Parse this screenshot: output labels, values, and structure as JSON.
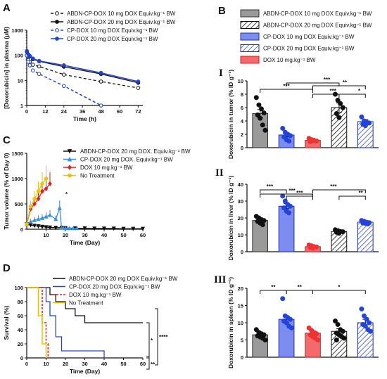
{
  "panels": {
    "A": "A",
    "B": "B",
    "C": "C",
    "D": "D",
    "I": "I",
    "II": "II",
    "III": "III"
  },
  "colors": {
    "black": "#111111",
    "blue": "#2244cc",
    "red": "#dd2222",
    "lightblue": "#3a8fe0",
    "yellow": "#f2c200",
    "gray": "#9a9a9a",
    "bluebar": "#7d8cf0",
    "redbar": "#f46a6a"
  },
  "chart_data": [
    {
      "id": "A",
      "type": "line",
      "xlabel": "Time (h)",
      "ylabel": "[Doxorubicin] in plasma (µM)",
      "xlim": [
        0,
        75
      ],
      "ylim": [
        1,
        1000
      ],
      "yscale": "log",
      "xticks": [
        "0",
        "12",
        "24",
        "36",
        "48",
        "60",
        "72"
      ],
      "yticks": [
        "1",
        "10",
        "100",
        "1000"
      ],
      "legend_position": "top-right",
      "series": [
        {
          "name": "ABDN-CP-DOX 10 mg DOX Equiv.kg⁻¹ BW",
          "style": "black-dashed-open",
          "x": [
            0.08,
            0.5,
            1,
            2,
            4,
            8,
            24,
            48,
            72
          ],
          "y": [
            100,
            80,
            65,
            55,
            42,
            36,
            17,
            9,
            5
          ]
        },
        {
          "name": "ABDN-CP-DOX 20 mg DOX Equiv.kg⁻¹ BW",
          "style": "black-solid-filled",
          "x": [
            0.08,
            0.5,
            1,
            2,
            4,
            8,
            24,
            48,
            72
          ],
          "y": [
            140,
            120,
            100,
            90,
            70,
            58,
            35,
            18,
            8
          ]
        },
        {
          "name": "CP-DOX 10 mg DOX Equiv.kg⁻¹ BW",
          "style": "blue-dashed-open",
          "x": [
            0.08,
            0.5,
            1,
            2,
            4,
            8,
            24,
            48
          ],
          "y": [
            100,
            70,
            55,
            40,
            25,
            18,
            6,
            1
          ]
        },
        {
          "name": "CP-DOX 20 mg DOX Equiv.kg⁻¹ BW",
          "style": "blue-solid-filled",
          "x": [
            0.08,
            0.5,
            1,
            2,
            4,
            8,
            24,
            48,
            72
          ],
          "y": [
            150,
            130,
            110,
            95,
            75,
            60,
            40,
            20,
            9
          ]
        }
      ]
    },
    {
      "id": "C",
      "type": "line",
      "xlabel": "Time (Day)",
      "ylabel": "Tumor volume (% of Day 0)",
      "xlim": [
        0,
        60
      ],
      "ylim": [
        0,
        1500
      ],
      "xticks": [
        "10",
        "20",
        "30",
        "40",
        "50",
        "60"
      ],
      "yticks": [
        "0",
        "500",
        "1000",
        "1500"
      ],
      "annotation": "*",
      "legend_position": "top-right",
      "series": [
        {
          "name": "ABDN-CP-DOX 20 mg DOX. Equiv.kg⁻¹ BW",
          "style": "black-down-triangle",
          "x": [
            0,
            2,
            4,
            6,
            8,
            10,
            12,
            15,
            18,
            20,
            25,
            30,
            35,
            40,
            45,
            50,
            55,
            60
          ],
          "y": [
            100,
            80,
            70,
            60,
            50,
            40,
            35,
            30,
            30,
            25,
            20,
            20,
            15,
            15,
            15,
            10,
            10,
            10
          ]
        },
        {
          "name": "CP-DOX 20 mg DOX. Equiv.kg⁻¹ BW",
          "style": "lightblue-up-triangle",
          "x": [
            0,
            2,
            4,
            6,
            8,
            10,
            12,
            15,
            17,
            18,
            20,
            22,
            24,
            26
          ],
          "y": [
            100,
            150,
            180,
            200,
            220,
            250,
            280,
            200,
            420,
            30,
            20,
            20,
            20,
            20
          ]
        },
        {
          "name": "DOX 10 mg.kg⁻¹ BW",
          "style": "red-diamond",
          "x": [
            0,
            2,
            4,
            6,
            8,
            10,
            12
          ],
          "y": [
            100,
            400,
            500,
            600,
            750,
            800,
            900
          ]
        },
        {
          "name": "No Treatment",
          "style": "yellow-circle",
          "x": [
            0,
            2,
            4,
            6,
            8,
            10
          ],
          "y": [
            100,
            450,
            600,
            750,
            900,
            1000
          ]
        }
      ]
    },
    {
      "id": "D",
      "type": "line",
      "xlabel": "Time (Day)",
      "ylabel": "Survival (%)",
      "xlim": [
        0,
        60
      ],
      "ylim": [
        0,
        100
      ],
      "xticks": [
        "0",
        "10",
        "20",
        "30",
        "40",
        "50",
        "60"
      ],
      "yticks": [
        "0",
        "20",
        "40",
        "60",
        "80",
        "100"
      ],
      "legend_position": "top-right",
      "significance": [
        "*",
        "**",
        "****"
      ],
      "series": [
        {
          "name": "ABDN-CP-DOX 20 mg DOX Equiv.kg⁻¹ BW",
          "style": "black-step",
          "x": [
            0,
            10,
            12,
            15,
            20,
            25,
            30,
            60
          ],
          "y": [
            100,
            100,
            90,
            80,
            70,
            60,
            50,
            50
          ]
        },
        {
          "name": "CP-DOX 20 mg DOX Equiv.kg⁻¹ BW",
          "style": "blue-step",
          "x": [
            0,
            8,
            10,
            12,
            15,
            18,
            40
          ],
          "y": [
            100,
            100,
            80,
            60,
            30,
            10,
            0
          ]
        },
        {
          "name": "DOX 10 mg.kg⁻¹ BW",
          "style": "red-dashed-step",
          "x": [
            0,
            6,
            8,
            10,
            11
          ],
          "y": [
            100,
            100,
            50,
            20,
            0
          ]
        },
        {
          "name": "No Treatment",
          "style": "yellow-step",
          "x": [
            0,
            4,
            6,
            8,
            10
          ],
          "y": [
            100,
            100,
            60,
            20,
            0
          ]
        }
      ]
    },
    {
      "id": "B-legend",
      "type": "bar",
      "series": [
        {
          "name": "ABDN-CP-DOX 10 mg DOX Equiv.kg⁻¹ BW",
          "style": "gray-solid"
        },
        {
          "name": "ABDN-CP-DOX 20 mg DOX Equiv.kg⁻¹ BW",
          "style": "white-hatched"
        },
        {
          "name": "CP-DOX 10 mg DOX Equiv.kg⁻¹ BW",
          "style": "blue-solid"
        },
        {
          "name": "CP-DOX 20 mg DOX Equiv.kg⁻¹ BW",
          "style": "blue-hatched"
        },
        {
          "name": "DOX 10 mg.kg⁻¹ BW",
          "style": "red-solid"
        }
      ]
    },
    {
      "id": "B-I",
      "type": "bar",
      "ylabel": "Doxorubicin in tumor (% ID g⁻¹)",
      "ylim": [
        0,
        10
      ],
      "yticks": [
        "0",
        "2",
        "4",
        "6",
        "8",
        "10"
      ],
      "categories": [
        "ABDN-CP-DOX 10",
        "CP-DOX 10",
        "DOX 10",
        "ABDN-CP-DOX 20",
        "CP-DOX 20"
      ],
      "values": [
        5.1,
        1.9,
        1.1,
        6.0,
        3.9
      ],
      "errors": [
        0.6,
        0.3,
        0.1,
        0.7,
        0.3
      ],
      "points": [
        [
          7.5,
          6.4,
          5.8,
          5.2,
          4.9,
          4.4,
          3.4,
          2.6
        ],
        [
          2.9,
          2.3,
          2.0,
          1.8,
          1.6,
          1.2,
          1.0
        ],
        [
          1.4,
          1.2,
          1.1,
          1.0,
          0.9,
          1.1
        ],
        [
          8.0,
          7.1,
          6.6,
          6.0,
          5.1,
          4.5
        ],
        [
          4.6,
          4.0,
          3.8,
          3.7,
          3.5,
          3.3
        ]
      ],
      "significance": [
        {
          "label": "***",
          "from": 0,
          "to": 2
        },
        {
          "label": "***",
          "from": 1,
          "to": 3
        },
        {
          "label": "***",
          "from": 2,
          "to": 3
        },
        {
          "label": "**",
          "from": 2,
          "to": 4
        },
        {
          "label": "*",
          "from": 3,
          "to": 4
        }
      ]
    },
    {
      "id": "B-II",
      "type": "bar",
      "ylabel": "Doxorubicin in liver (% ID g⁻¹)",
      "ylim": [
        0,
        40
      ],
      "yticks": [
        "0",
        "10",
        "20",
        "30",
        "40"
      ],
      "categories": [
        "ABDN-CP-DOX 10",
        "CP-DOX 10",
        "DOX 10",
        "ABDN-CP-DOX 20",
        "CP-DOX 20"
      ],
      "values": [
        18.5,
        27.0,
        3.0,
        12.0,
        17.5
      ],
      "errors": [
        1.0,
        1.5,
        0.3,
        0.4,
        0.5
      ],
      "points": [
        [
          21,
          20,
          19,
          18.5,
          18,
          17,
          16
        ],
        [
          33,
          30,
          28,
          27,
          26,
          24,
          23
        ],
        [
          4.0,
          3.5,
          3.0,
          2.8,
          2.5,
          2.2
        ],
        [
          13,
          12.5,
          12,
          11.8,
          11.5,
          11
        ],
        [
          18.5,
          18,
          17.5,
          17.2,
          17,
          16.8,
          16.5
        ]
      ],
      "significance": [
        {
          "label": "***",
          "from": 0,
          "to": 1
        },
        {
          "label": "***",
          "from": 0,
          "to": 2
        },
        {
          "label": "***",
          "from": 1,
          "to": 2
        },
        {
          "label": "***",
          "from": 2,
          "to": 4
        },
        {
          "label": "**",
          "from": 3,
          "to": 4
        }
      ]
    },
    {
      "id": "B-III",
      "type": "bar",
      "ylabel": "Doxorubicin in spleen (% ID g⁻¹)",
      "ylim": [
        0,
        20
      ],
      "yticks": [
        "0",
        "5",
        "10",
        "15",
        "20"
      ],
      "categories": [
        "ABDN-CP-DOX 10",
        "CP-DOX 10",
        "DOX 10",
        "ABDN-CP-DOX 20",
        "CP-DOX 20"
      ],
      "values": [
        6.5,
        11.0,
        7.0,
        7.5,
        10.0
      ],
      "errors": [
        0.5,
        1.0,
        0.6,
        0.8,
        1.0
      ],
      "points": [
        [
          8,
          7.2,
          6.8,
          6.5,
          6.2,
          5.9,
          5.5,
          5.0
        ],
        [
          17,
          12,
          11.5,
          11,
          10.5,
          10,
          9,
          8.5
        ],
        [
          8.5,
          7.8,
          7.2,
          6.8,
          6.5,
          6.0,
          5.5,
          5.0
        ],
        [
          10.5,
          9.5,
          8,
          7.5,
          7,
          6.5,
          6,
          5.5,
          5
        ],
        [
          14,
          12,
          11,
          10,
          9.5,
          9,
          8,
          7.5
        ]
      ],
      "significance": [
        {
          "label": "**",
          "from": 0,
          "to": 1
        },
        {
          "label": "**",
          "from": 1,
          "to": 2
        },
        {
          "label": "*",
          "from": 2,
          "to": 4
        }
      ]
    }
  ]
}
